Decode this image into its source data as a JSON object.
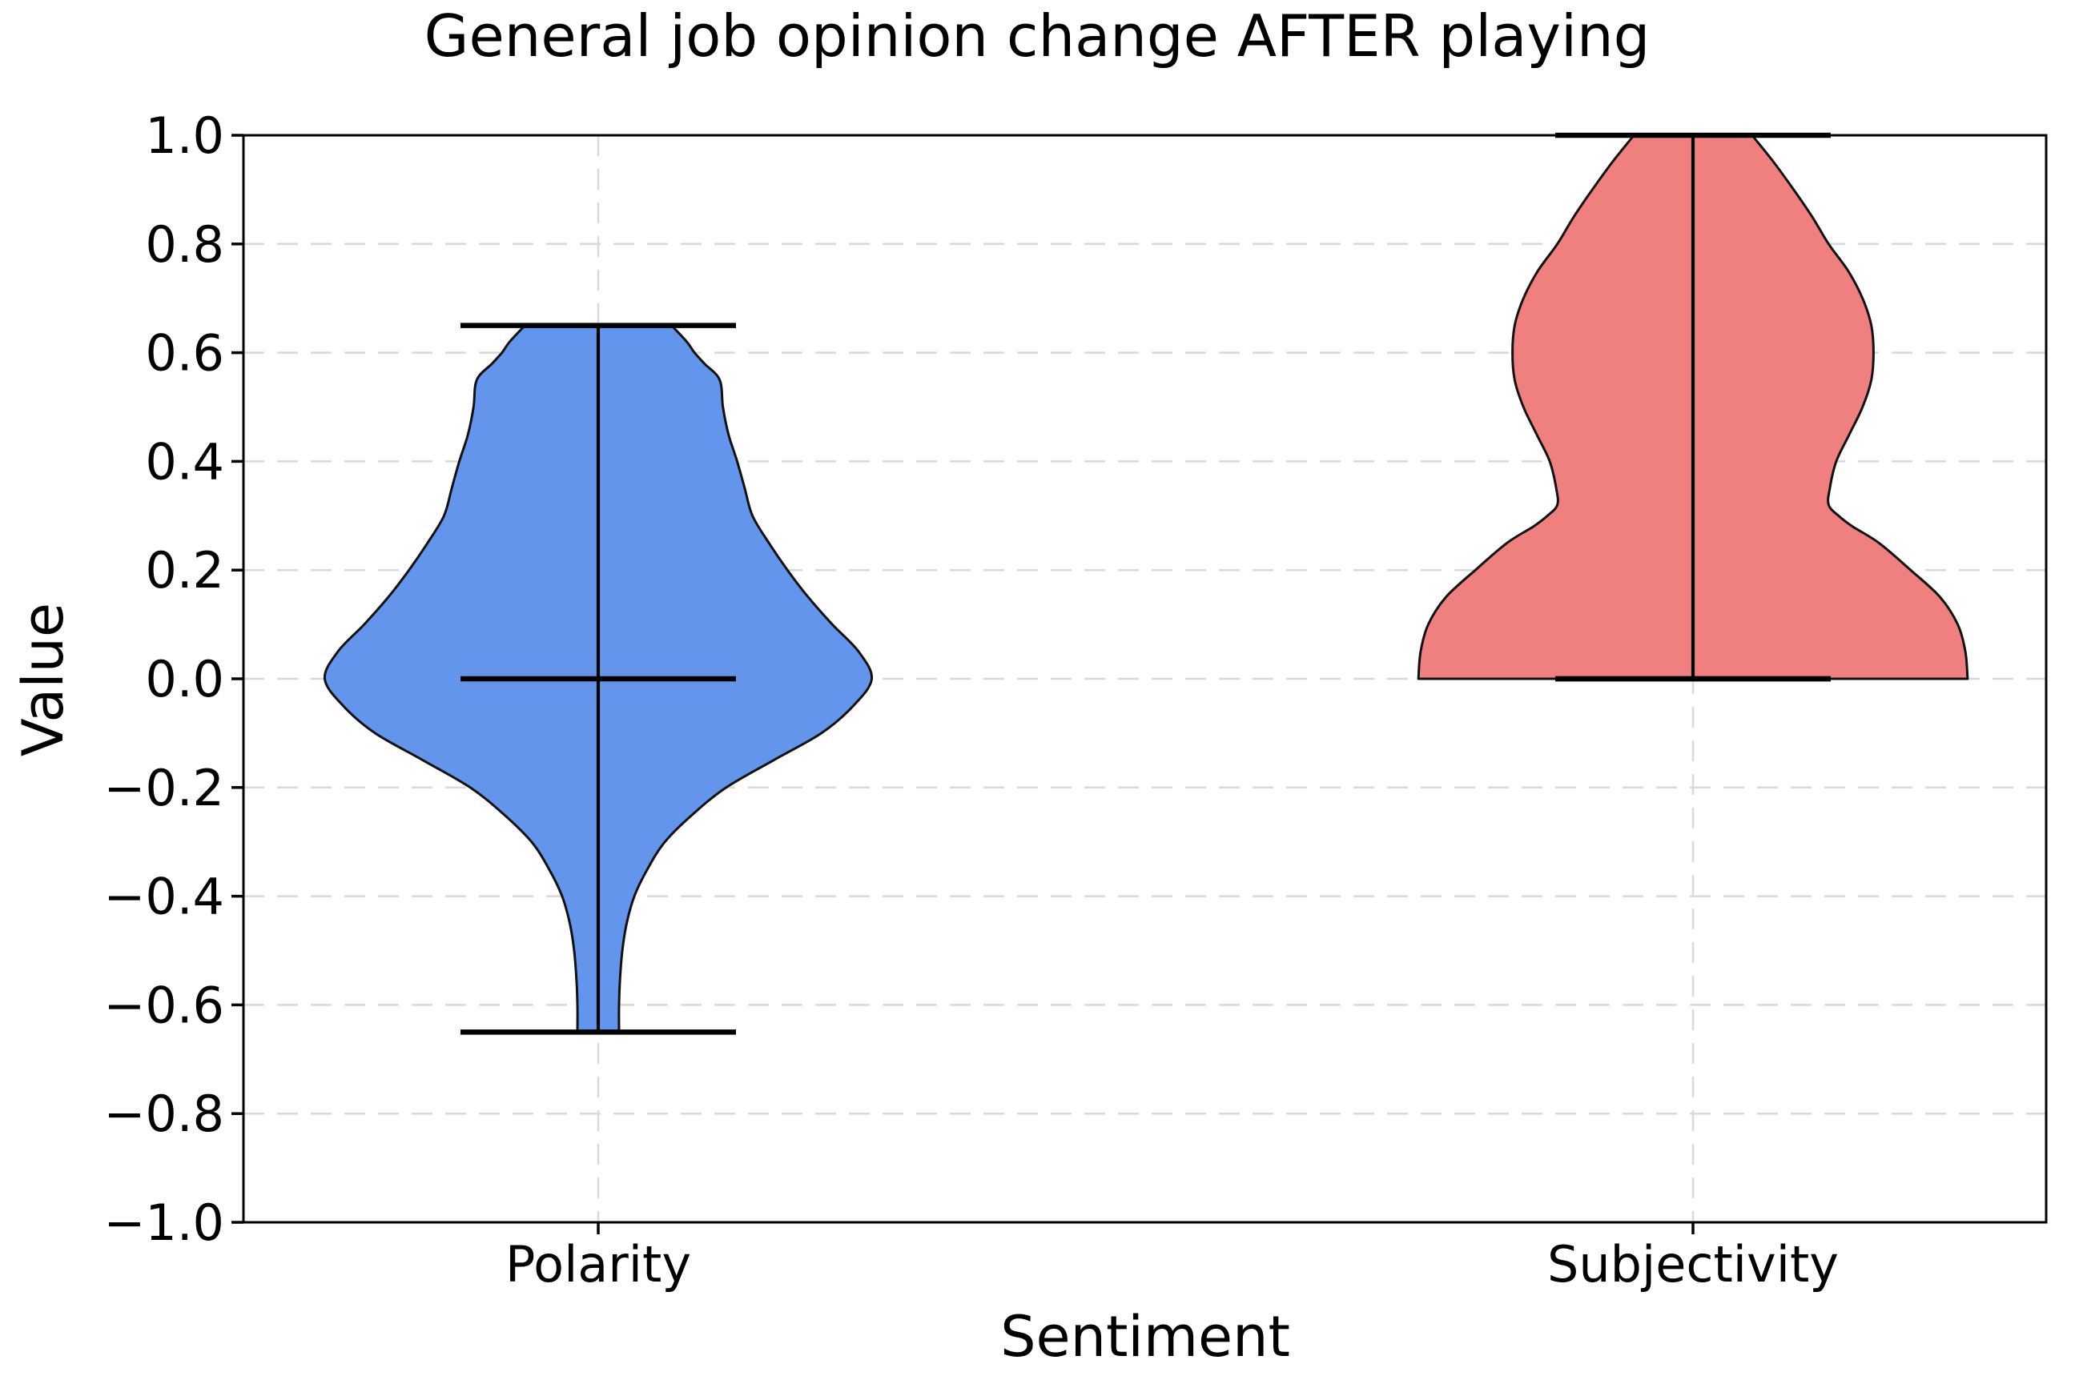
{
  "figure": {
    "background": "#ffffff",
    "title": "General job opinion change AFTER playing"
  },
  "chart_data": {
    "type": "violin",
    "title": "General job opinion change AFTER playing",
    "xlabel": "Sentiment",
    "ylabel": "Value",
    "ylim": [
      -1.0,
      1.0
    ],
    "yticks": [
      1.0,
      0.8,
      0.6,
      0.4,
      0.2,
      0.0,
      -0.2,
      -0.4,
      -0.6,
      -0.8,
      -1.0
    ],
    "ytick_labels": [
      "1.0",
      "0.8",
      "0.6",
      "0.4",
      "0.2",
      "0.0",
      "−0.2",
      "−0.4",
      "−0.6",
      "−0.8",
      "−1.0"
    ],
    "grid": {
      "visible": true,
      "style": "dashed",
      "color": "#d9d9d9"
    },
    "legend_position": "none",
    "categories": [
      "Polarity",
      "Subjectivity"
    ],
    "series": [
      {
        "name": "Polarity",
        "fill_color": "#6495ED",
        "edge_color": "#111111",
        "line_color": "#000000",
        "stats": {
          "min": -0.65,
          "max": 0.65,
          "median": 0.0
        },
        "profile": [
          [
            0.65,
            0.067
          ],
          [
            0.62,
            0.081
          ],
          [
            0.6,
            0.088
          ],
          [
            0.58,
            0.097
          ],
          [
            0.55,
            0.111
          ],
          [
            0.5,
            0.114
          ],
          [
            0.45,
            0.119
          ],
          [
            0.4,
            0.127
          ],
          [
            0.35,
            0.134
          ],
          [
            0.3,
            0.141
          ],
          [
            0.25,
            0.156
          ],
          [
            0.2,
            0.173
          ],
          [
            0.15,
            0.192
          ],
          [
            0.1,
            0.214
          ],
          [
            0.05,
            0.238
          ],
          [
            0.0,
            0.25
          ],
          [
            -0.05,
            0.233
          ],
          [
            -0.1,
            0.204
          ],
          [
            -0.15,
            0.16
          ],
          [
            -0.2,
            0.117
          ],
          [
            -0.25,
            0.086
          ],
          [
            -0.3,
            0.061
          ],
          [
            -0.35,
            0.045
          ],
          [
            -0.4,
            0.033
          ],
          [
            -0.45,
            0.026
          ],
          [
            -0.5,
            0.022
          ],
          [
            -0.55,
            0.02
          ],
          [
            -0.6,
            0.019
          ],
          [
            -0.65,
            0.019
          ]
        ]
      },
      {
        "name": "Subjectivity",
        "fill_color": "#F08080",
        "edge_color": "#111111",
        "line_color": "#000000",
        "stats": {
          "min": 0.0,
          "max": 1.0,
          "median": 0.0
        },
        "profile": [
          [
            1.0,
            0.054
          ],
          [
            0.95,
            0.074
          ],
          [
            0.9,
            0.092
          ],
          [
            0.85,
            0.109
          ],
          [
            0.8,
            0.124
          ],
          [
            0.75,
            0.142
          ],
          [
            0.7,
            0.155
          ],
          [
            0.65,
            0.163
          ],
          [
            0.6,
            0.165
          ],
          [
            0.55,
            0.163
          ],
          [
            0.5,
            0.155
          ],
          [
            0.45,
            0.143
          ],
          [
            0.4,
            0.131
          ],
          [
            0.35,
            0.125
          ],
          [
            0.32,
            0.124
          ],
          [
            0.3,
            0.133
          ],
          [
            0.28,
            0.146
          ],
          [
            0.25,
            0.17
          ],
          [
            0.2,
            0.199
          ],
          [
            0.15,
            0.226
          ],
          [
            0.1,
            0.242
          ],
          [
            0.05,
            0.249
          ],
          [
            0.0,
            0.251
          ]
        ]
      }
    ]
  }
}
